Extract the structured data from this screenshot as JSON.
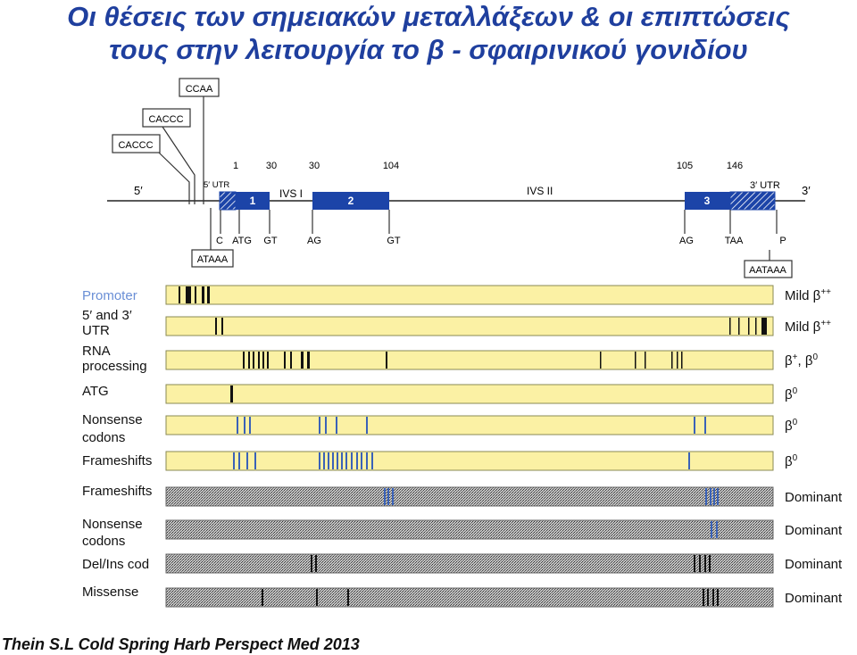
{
  "title": {
    "line1": "Οι θέσεις των σημειακών μεταλλάξεων & οι επιπτώσεις",
    "line2": "τους στην λειτουργία το β - σφαιρινικού γονιδίου"
  },
  "gene_map": {
    "upstream_boxes": [
      "CCAA",
      "CACCC",
      "CACCC"
    ],
    "end_5": "5′",
    "end_3": "3′",
    "utr5_label": "5′ UTR",
    "utr3_label": "3′ UTR",
    "intron1_label": "IVS I",
    "intron2_label": "IVS II",
    "exons": [
      {
        "label": "1",
        "codon_start": "1",
        "codon_end": "30"
      },
      {
        "label": "2",
        "codon_start": "30",
        "codon_end": "104"
      },
      {
        "label": "3",
        "codon_start": "105",
        "codon_end": "146"
      }
    ],
    "bottom_labels": [
      "C",
      "ATG",
      "GT",
      "AG",
      "GT",
      "AG",
      "TAA",
      "P"
    ],
    "box_atata": "ATAAA",
    "box_aataaa": "AATAAA"
  },
  "colors": {
    "exon_blue": "#1c44a8",
    "light_bar": "#fbf1a4",
    "title_blue": "#1f3f9e",
    "mutation_blue": "#3a62b8",
    "label_blue": "#6a8fd6"
  },
  "mutation_classes": [
    {
      "label_lines": [
        "Promoter"
      ],
      "phenotype": "Mild β",
      "phenotype_sup": "++",
      "style": "light",
      "highlight": true
    },
    {
      "label_lines": [
        "5′ and 3′",
        "UTR"
      ],
      "phenotype": "Mild β",
      "phenotype_sup": "++",
      "style": "light"
    },
    {
      "label_lines": [
        "RNA",
        "processing"
      ],
      "phenotype": "β",
      "phenotype_sup": "+",
      "phenotype_tail": ", β",
      "phenotype_tail_sup": "0",
      "style": "light"
    },
    {
      "label_lines": [
        "ATG"
      ],
      "phenotype": "β",
      "phenotype_sup": "0",
      "style": "light"
    },
    {
      "label_lines": [
        "Nonsense",
        "codons"
      ],
      "phenotype": "β",
      "phenotype_sup": "0",
      "style": "light"
    },
    {
      "label_lines": [
        "Frameshifts"
      ],
      "phenotype": "β",
      "phenotype_sup": "0",
      "style": "light"
    },
    {
      "label_lines": [
        "Frameshifts"
      ],
      "phenotype": "Dominant",
      "style": "dark"
    },
    {
      "label_lines": [
        "Nonsense",
        "codons"
      ],
      "phenotype": "Dominant",
      "style": "dark"
    },
    {
      "label_lines": [
        "Del/Ins cod"
      ],
      "phenotype": "Dominant",
      "style": "dark"
    },
    {
      "label_lines": [
        "Missense"
      ],
      "phenotype": "Dominant",
      "style": "dark"
    }
  ],
  "citation": "Thein S.L Cold Spring Harb Perspect Med 2013"
}
